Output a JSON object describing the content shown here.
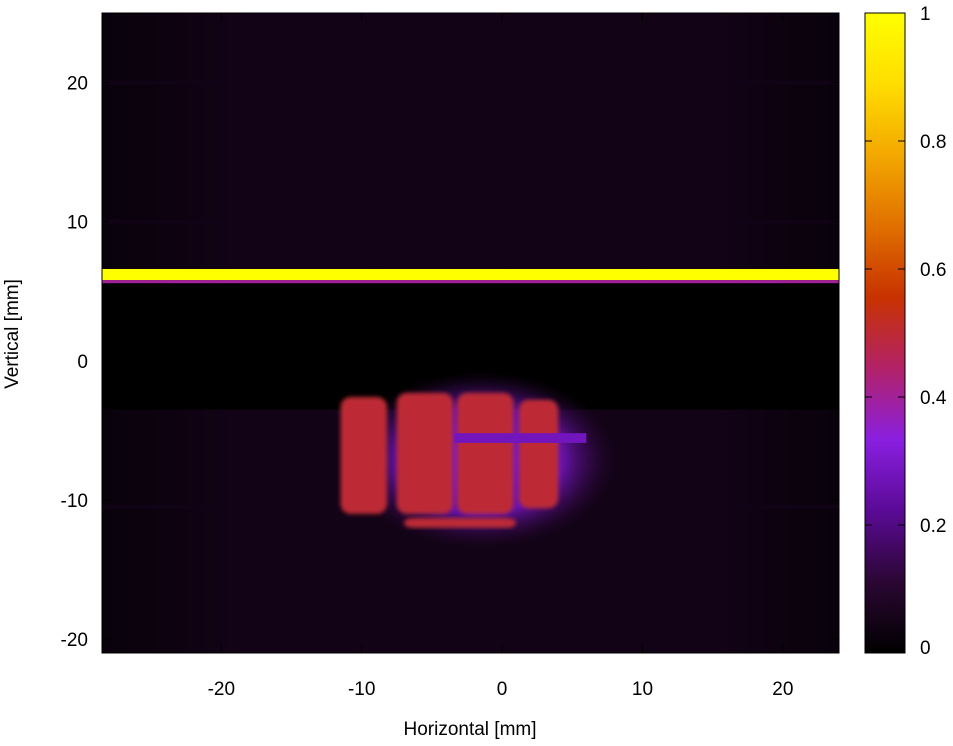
{
  "chart_data": {
    "type": "heatmap",
    "title": "",
    "xlabel": "Horizontal [mm]",
    "ylabel": "Vertical [mm]",
    "xlim": [
      -28.5,
      24
    ],
    "ylim": [
      -21,
      25
    ],
    "xticks": [
      -20,
      -10,
      0,
      10,
      20
    ],
    "xtick_labels": [
      "-20",
      "-10",
      "0",
      "10",
      "20"
    ],
    "yticks": [
      -20,
      -10,
      0,
      10,
      20
    ],
    "ytick_labels": [
      "-20",
      "-10",
      "0",
      "10",
      "20"
    ],
    "colorbar": {
      "range": [
        0,
        1
      ],
      "ticks": [
        0,
        0.2,
        0.4,
        0.6,
        0.8,
        1
      ],
      "tick_labels": [
        "0",
        "0.2",
        "0.4",
        "0.6",
        "0.8",
        "1"
      ],
      "colormap": [
        "#000000",
        "#2b0733",
        "#5a0a96",
        "#8a1fe0",
        "#b22268",
        "#c83200",
        "#e07000",
        "#f3a800",
        "#ffdd00",
        "#ffff00"
      ]
    },
    "grid": false,
    "features": {
      "bright_line": {
        "y_range": [
          5.8,
          6.6
        ],
        "x_range": [
          -28.5,
          24
        ],
        "intensity": 1.0
      },
      "dark_band": {
        "y_range": [
          -3.5,
          5.5
        ],
        "intensity": 0.0
      },
      "background_intensity": 0.05,
      "hot_region": {
        "center": [
          -3.5,
          -7.5
        ],
        "x_range": [
          -9,
          6
        ],
        "y_range": [
          -12,
          -2.2
        ],
        "intensity": 0.5
      },
      "grid_lines_x": [
        -20,
        -9.5,
        -8.5,
        0.5,
        10
      ],
      "grid_lines_y": [
        20,
        10,
        -10.5
      ]
    }
  }
}
